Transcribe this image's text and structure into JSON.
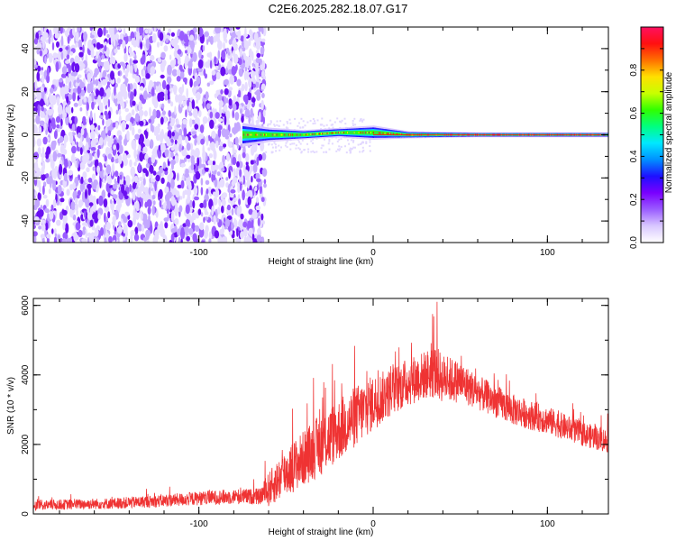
{
  "title": "C2E6.2025.282.18.07.G17",
  "chart_data": [
    {
      "type": "heatmap",
      "xlabel": "Height of straight line (km)",
      "ylabel": "Frequency (Hz)",
      "xlim": [
        -195,
        135
      ],
      "ylim": [
        -50,
        50
      ],
      "x_ticks": [
        -100,
        0,
        100
      ],
      "y_ticks": [
        -40,
        -20,
        0,
        20,
        40
      ],
      "colorbar": {
        "label": "Normalized spectral amplitude",
        "range": [
          0,
          1
        ],
        "ticks": [
          0.0,
          0.2,
          0.4,
          0.6,
          0.8
        ],
        "colors": [
          "#ffffff",
          "#d9c8ff",
          "#9a5cff",
          "#7a00ff",
          "#1e10ff",
          "#0090ff",
          "#00e8ff",
          "#00ff80",
          "#30ff00",
          "#c8ff00",
          "#ffe000",
          "#ff7000",
          "#ff1010",
          "#ff1060"
        ]
      },
      "noise_region_x": [
        -195,
        -62
      ],
      "signal_band": {
        "x": [
          -75,
          -60,
          -40,
          -20,
          0,
          20,
          60,
          100,
          135
        ],
        "center_freq": [
          0,
          0,
          0,
          1,
          1,
          0,
          0,
          0,
          0
        ],
        "width_hz": [
          5,
          3,
          2,
          2,
          3,
          1.5,
          1,
          1,
          1
        ]
      }
    },
    {
      "type": "line",
      "xlabel": "Height of straight line (km)",
      "ylabel": "SNR (10 * v/v)",
      "xlim": [
        -195,
        135
      ],
      "ylim": [
        0,
        6200
      ],
      "x_ticks": [
        -100,
        0,
        100
      ],
      "y_ticks": [
        0,
        2000,
        4000,
        6000
      ],
      "color": "#ef3333",
      "envelope": {
        "x": [
          -195,
          -170,
          -150,
          -120,
          -100,
          -80,
          -65,
          -60,
          -50,
          -40,
          -30,
          -20,
          -10,
          0,
          10,
          20,
          30,
          35,
          40,
          50,
          60,
          80,
          100,
          120,
          135
        ],
        "mean": [
          250,
          280,
          300,
          380,
          450,
          500,
          500,
          700,
          1200,
          1600,
          2000,
          2400,
          2800,
          3200,
          3500,
          3800,
          4000,
          4100,
          3900,
          3800,
          3500,
          3000,
          2700,
          2300,
          2100
        ],
        "spread": [
          150,
          150,
          160,
          180,
          200,
          220,
          230,
          500,
          700,
          800,
          900,
          900,
          900,
          800,
          700,
          700,
          700,
          800,
          700,
          600,
          500,
          450,
          400,
          350,
          350
        ]
      }
    }
  ]
}
